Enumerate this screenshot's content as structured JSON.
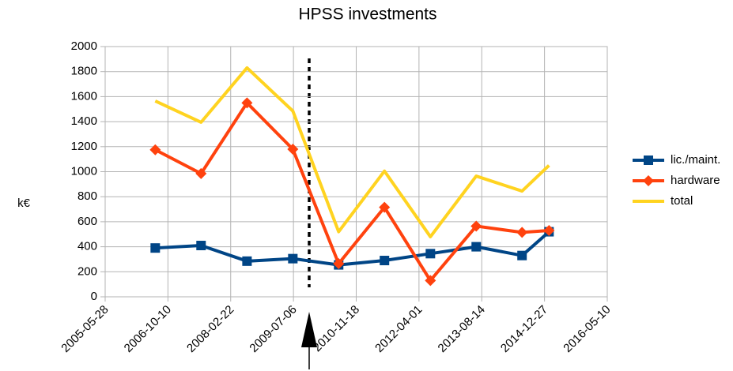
{
  "chart_data": {
    "type": "line",
    "title": "HPSS investments",
    "ylabel": "k€",
    "x": [
      "2006-07-01",
      "2007-07-01",
      "2008-07-01",
      "2009-07-01",
      "2010-07-01",
      "2011-07-01",
      "2012-07-01",
      "2013-07-01",
      "2014-07-01",
      "2015-02-01"
    ],
    "series": [
      {
        "name": "lic./maint.",
        "color": "#004586",
        "marker": "square",
        "values": [
          390,
          410,
          285,
          305,
          255,
          290,
          345,
          400,
          330,
          520
        ]
      },
      {
        "name": "hardware",
        "color": "#ff420e",
        "marker": "diamond",
        "values": [
          1175,
          985,
          1550,
          1180,
          265,
          715,
          130,
          565,
          515,
          530
        ]
      },
      {
        "name": "total",
        "color": "#ffd320",
        "marker": "none",
        "values": [
          1565,
          1395,
          1830,
          1485,
          520,
          1005,
          480,
          965,
          845,
          1050
        ]
      }
    ],
    "xlim": [
      "2005-05-28",
      "2016-05-10"
    ],
    "xticks": [
      "2005-05-28",
      "2006-10-10",
      "2008-02-22",
      "2009-07-06",
      "2010-11-18",
      "2012-04-01",
      "2013-08-14",
      "2014-12-27",
      "2016-05-10"
    ],
    "ylim": [
      0,
      2000
    ],
    "yticks": [
      0,
      200,
      400,
      600,
      800,
      1000,
      1200,
      1400,
      1600,
      1800,
      2000
    ],
    "grid": true,
    "legend": "right"
  }
}
